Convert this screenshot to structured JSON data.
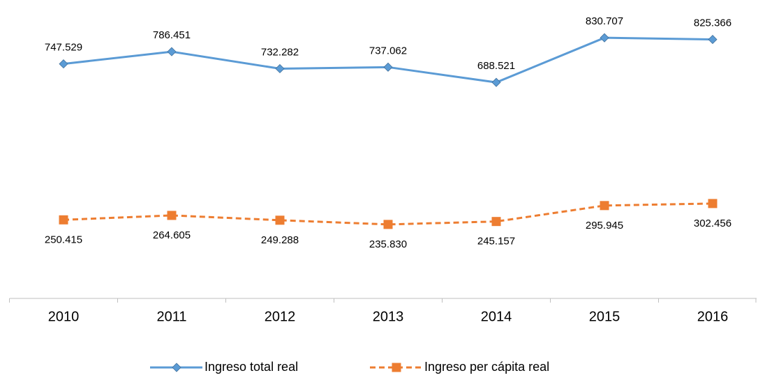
{
  "chart_data": {
    "type": "line",
    "categories": [
      "2010",
      "2011",
      "2012",
      "2013",
      "2014",
      "2015",
      "2016"
    ],
    "series": [
      {
        "name": "Ingreso total real",
        "color": "#5b9bd5",
        "marker": "diamond",
        "dash": false,
        "label_position": "above",
        "values": [
          747.529,
          786.451,
          732.282,
          737.062,
          688.521,
          830.707,
          825.366
        ],
        "value_labels": [
          "747.529",
          "786.451",
          "732.282",
          "737.062",
          "688.521",
          "830.707",
          "825.366"
        ]
      },
      {
        "name": "Ingreso per cápita real",
        "color": "#ed7d31",
        "marker": "square",
        "dash": true,
        "label_position": "below",
        "values": [
          250.415,
          264.605,
          249.288,
          235.83,
          245.157,
          295.945,
          302.456
        ],
        "value_labels": [
          "250.415",
          "264.605",
          "249.288",
          "235.830",
          "245.157",
          "295.945",
          "302.456"
        ]
      }
    ],
    "ylim": [
      0,
      900
    ],
    "legend": "bottom"
  }
}
